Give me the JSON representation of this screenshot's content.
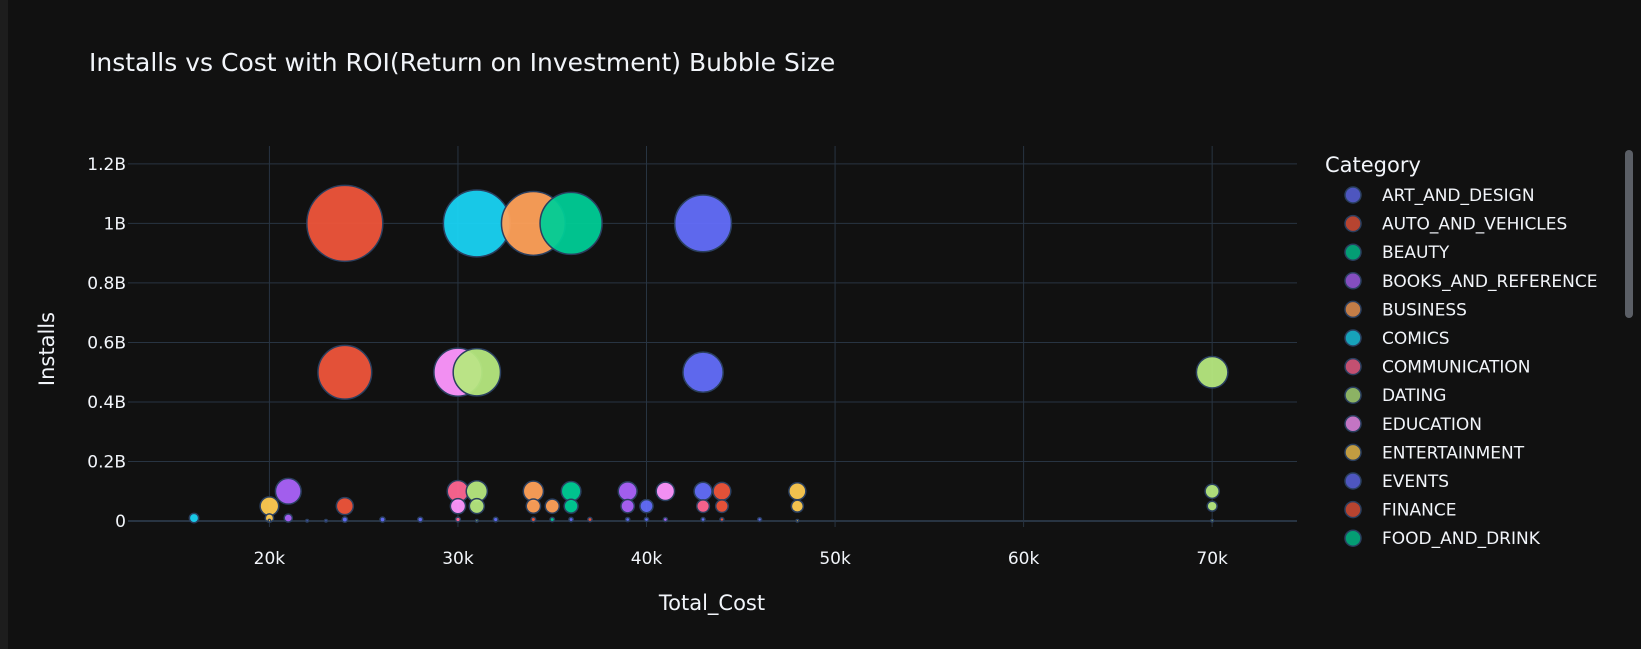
{
  "chart_data": {
    "type": "scatter",
    "title": "Installs vs Cost with ROI(Return on Investment) Bubble Size",
    "xlabel": "Total_Cost",
    "ylabel": "Installs",
    "xlim": [
      12500,
      74500
    ],
    "ylim": [
      -20000000,
      1260000000
    ],
    "x_ticks": [
      {
        "value": 20000,
        "label": "20k"
      },
      {
        "value": 30000,
        "label": "30k"
      },
      {
        "value": 40000,
        "label": "40k"
      },
      {
        "value": 50000,
        "label": "50k"
      },
      {
        "value": 60000,
        "label": "60k"
      },
      {
        "value": 70000,
        "label": "70k"
      }
    ],
    "y_ticks": [
      {
        "value": 0,
        "label": "0"
      },
      {
        "value": 200000000,
        "label": "0.2B"
      },
      {
        "value": 400000000,
        "label": "0.4B"
      },
      {
        "value": 600000000,
        "label": "0.6B"
      },
      {
        "value": 800000000,
        "label": "0.8B"
      },
      {
        "value": 1000000000,
        "label": "1B"
      },
      {
        "value": 1200000000,
        "label": "1.2B"
      }
    ],
    "grid": true,
    "legend_position": "right",
    "legend_title": "Category",
    "legend": [
      {
        "name": "ART_AND_DESIGN",
        "color": "#636efa"
      },
      {
        "name": "AUTO_AND_VEHICLES",
        "color": "#ef553b"
      },
      {
        "name": "BEAUTY",
        "color": "#00cc96"
      },
      {
        "name": "BOOKS_AND_REFERENCE",
        "color": "#ab63fa"
      },
      {
        "name": "BUSINESS",
        "color": "#ffa15a"
      },
      {
        "name": "COMICS",
        "color": "#19d3f3"
      },
      {
        "name": "COMMUNICATION",
        "color": "#ff6692"
      },
      {
        "name": "DATING",
        "color": "#b6e880"
      },
      {
        "name": "EDUCATION",
        "color": "#ff97ff"
      },
      {
        "name": "ENTERTAINMENT",
        "color": "#fecb52"
      },
      {
        "name": "EVENTS",
        "color": "#636efa"
      },
      {
        "name": "FINANCE",
        "color": "#ef553b"
      },
      {
        "name": "FOOD_AND_DRINK",
        "color": "#00cc96"
      }
    ],
    "points": [
      {
        "x": 24000,
        "y": 1000000000,
        "roi": 41667,
        "color": "#ef553b"
      },
      {
        "x": 31000,
        "y": 1000000000,
        "roi": 32258,
        "color": "#19d3f3"
      },
      {
        "x": 36000,
        "y": 1000000000,
        "roi": 27778,
        "color": "#00cc96"
      },
      {
        "x": 34000,
        "y": 1000000000,
        "roi": 29412,
        "color": "#ffa15a"
      },
      {
        "x": 43000,
        "y": 1000000000,
        "roi": 23256,
        "color": "#636efa"
      },
      {
        "x": 24000,
        "y": 500000000,
        "roi": 20833,
        "color": "#ef553b"
      },
      {
        "x": 30000,
        "y": 500000000,
        "roi": 16667,
        "color": "#ff97ff"
      },
      {
        "x": 31000,
        "y": 500000000,
        "roi": 16129,
        "color": "#b6e880"
      },
      {
        "x": 43000,
        "y": 500000000,
        "roi": 11628,
        "color": "#636efa"
      },
      {
        "x": 70000,
        "y": 500000000,
        "roi": 7143,
        "color": "#b6e880"
      },
      {
        "x": 21000,
        "y": 100000000,
        "roi": 4762,
        "color": "#ab63fa"
      },
      {
        "x": 30000,
        "y": 100000000,
        "roi": 3333,
        "color": "#ff6692"
      },
      {
        "x": 31000,
        "y": 100000000,
        "roi": 3226,
        "color": "#b6e880"
      },
      {
        "x": 34000,
        "y": 100000000,
        "roi": 2941,
        "color": "#ffa15a"
      },
      {
        "x": 36000,
        "y": 100000000,
        "roi": 2778,
        "color": "#00cc96"
      },
      {
        "x": 39000,
        "y": 100000000,
        "roi": 2564,
        "color": "#ab63fa"
      },
      {
        "x": 41000,
        "y": 100000000,
        "roi": 2439,
        "color": "#ff97ff"
      },
      {
        "x": 43000,
        "y": 100000000,
        "roi": 2326,
        "color": "#636efa"
      },
      {
        "x": 44000,
        "y": 100000000,
        "roi": 2273,
        "color": "#ef553b"
      },
      {
        "x": 48000,
        "y": 100000000,
        "roi": 2083,
        "color": "#fecb52"
      },
      {
        "x": 70000,
        "y": 100000000,
        "roi": 1429,
        "color": "#b6e880"
      },
      {
        "x": 20000,
        "y": 50000000,
        "roi": 2500,
        "color": "#fecb52"
      },
      {
        "x": 24000,
        "y": 50000000,
        "roi": 2083,
        "color": "#ef553b"
      },
      {
        "x": 30000,
        "y": 50000000,
        "roi": 1667,
        "color": "#ff97ff"
      },
      {
        "x": 31000,
        "y": 50000000,
        "roi": 1613,
        "color": "#b6e880"
      },
      {
        "x": 34000,
        "y": 50000000,
        "roi": 1471,
        "color": "#ffa15a"
      },
      {
        "x": 35000,
        "y": 50000000,
        "roi": 1429,
        "color": "#ffa15a"
      },
      {
        "x": 36000,
        "y": 50000000,
        "roi": 1389,
        "color": "#00cc96"
      },
      {
        "x": 39000,
        "y": 50000000,
        "roi": 1282,
        "color": "#ab63fa"
      },
      {
        "x": 40000,
        "y": 50000000,
        "roi": 1250,
        "color": "#636efa"
      },
      {
        "x": 43000,
        "y": 50000000,
        "roi": 1163,
        "color": "#ff6692"
      },
      {
        "x": 44000,
        "y": 50000000,
        "roi": 1136,
        "color": "#ef553b"
      },
      {
        "x": 48000,
        "y": 50000000,
        "roi": 1042,
        "color": "#fecb52"
      },
      {
        "x": 70000,
        "y": 50000000,
        "roi": 714,
        "color": "#b6e880"
      },
      {
        "x": 16000,
        "y": 10000000,
        "roi": 625,
        "color": "#19d3f3"
      },
      {
        "x": 21000,
        "y": 10000000,
        "roi": 476,
        "color": "#ab63fa"
      },
      {
        "x": 20000,
        "y": 10000000,
        "roi": 500,
        "color": "#fecb52"
      },
      {
        "x": 24000,
        "y": 5000000,
        "roi": 208,
        "color": "#636efa"
      },
      {
        "x": 26000,
        "y": 5000000,
        "roi": 192,
        "color": "#636efa"
      },
      {
        "x": 28000,
        "y": 5000000,
        "roi": 179,
        "color": "#636efa"
      },
      {
        "x": 30000,
        "y": 5000000,
        "roi": 167,
        "color": "#ff6692"
      },
      {
        "x": 32000,
        "y": 5000000,
        "roi": 156,
        "color": "#636efa"
      },
      {
        "x": 34000,
        "y": 5000000,
        "roi": 147,
        "color": "#ef553b"
      },
      {
        "x": 35000,
        "y": 5000000,
        "roi": 143,
        "color": "#00cc96"
      },
      {
        "x": 36000,
        "y": 5000000,
        "roi": 139,
        "color": "#636efa"
      },
      {
        "x": 37000,
        "y": 5000000,
        "roi": 135,
        "color": "#ef553b"
      },
      {
        "x": 39000,
        "y": 5000000,
        "roi": 128,
        "color": "#636efa"
      },
      {
        "x": 40000,
        "y": 5000000,
        "roi": 125,
        "color": "#636efa"
      },
      {
        "x": 41000,
        "y": 5000000,
        "roi": 122,
        "color": "#ab63fa"
      },
      {
        "x": 43000,
        "y": 5000000,
        "roi": 116,
        "color": "#636efa"
      },
      {
        "x": 44000,
        "y": 5000000,
        "roi": 114,
        "color": "#ef553b"
      },
      {
        "x": 46000,
        "y": 5000000,
        "roi": 109,
        "color": "#636efa"
      },
      {
        "x": 48000,
        "y": 1000000,
        "roi": 21,
        "color": "#fecb52"
      },
      {
        "x": 70000,
        "y": 1000000,
        "roi": 14,
        "color": "#b6e880"
      },
      {
        "x": 20000,
        "y": 1000000,
        "roi": 50,
        "color": "#fecb52"
      },
      {
        "x": 22000,
        "y": 1000000,
        "roi": 45,
        "color": "#636efa"
      },
      {
        "x": 23000,
        "y": 1000000,
        "roi": 43,
        "color": "#636efa"
      },
      {
        "x": 31000,
        "y": 1000000,
        "roi": 32,
        "color": "#b6e880"
      }
    ]
  }
}
